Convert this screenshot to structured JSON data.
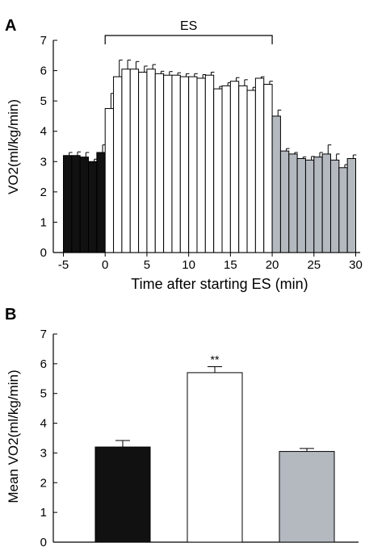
{
  "chart_data": [
    {
      "panel": "A",
      "type": "bar",
      "ylabel": "VO2(ml/kg/min)",
      "xlabel": "Time after starting ES (min)",
      "ylim": [
        0,
        7
      ],
      "xlim": [
        -5,
        30
      ],
      "yticks": [
        "0",
        "1",
        "2",
        "3",
        "4",
        "5",
        "6",
        "7"
      ],
      "xticks": [
        "-5",
        "0",
        "5",
        "10",
        "15",
        "20",
        "25",
        "30"
      ],
      "bracket_label": "ES",
      "bracket_range": [
        0,
        20
      ],
      "colors": {
        "pre": "#111111",
        "es": "#ffffff",
        "post": "#b4b9c0"
      },
      "x": [
        -5,
        -4,
        -3,
        -2,
        -1,
        0,
        1,
        2,
        3,
        4,
        5,
        6,
        7,
        8,
        9,
        10,
        11,
        12,
        13,
        14,
        15,
        16,
        17,
        18,
        19,
        20,
        21,
        22,
        23,
        24,
        25,
        26,
        27,
        28,
        29
      ],
      "values": [
        3.2,
        3.2,
        3.15,
        3.0,
        3.3,
        4.75,
        5.8,
        6.05,
        6.05,
        5.95,
        6.05,
        5.9,
        5.85,
        5.85,
        5.8,
        5.8,
        5.75,
        5.85,
        5.4,
        5.5,
        5.65,
        5.5,
        5.35,
        5.75,
        5.55,
        4.5,
        3.35,
        3.25,
        3.1,
        3.05,
        3.15,
        3.25,
        3.05,
        2.8,
        3.1
      ],
      "errors": [
        0.1,
        0.12,
        0.15,
        0.08,
        0.25,
        0.5,
        0.55,
        0.3,
        0.25,
        0.2,
        0.15,
        0.08,
        0.12,
        0.08,
        0.1,
        0.1,
        0.12,
        0.1,
        0.08,
        0.1,
        0.12,
        0.2,
        0.1,
        0.05,
        0.1,
        0.2,
        0.08,
        0.05,
        0.05,
        0.12,
        0.15,
        0.3,
        0.2,
        0.1,
        0.12
      ],
      "groups": [
        "pre",
        "pre",
        "pre",
        "pre",
        "pre",
        "es",
        "es",
        "es",
        "es",
        "es",
        "es",
        "es",
        "es",
        "es",
        "es",
        "es",
        "es",
        "es",
        "es",
        "es",
        "es",
        "es",
        "es",
        "es",
        "es",
        "post",
        "post",
        "post",
        "post",
        "post",
        "post",
        "post",
        "post",
        "post",
        "post"
      ]
    },
    {
      "panel": "B",
      "type": "bar",
      "ylabel": "Mean VO2(ml/kg/min)",
      "ylim": [
        0,
        7
      ],
      "yticks": [
        "0",
        "1",
        "2",
        "3",
        "4",
        "5",
        "6",
        "7"
      ],
      "values": [
        3.2,
        5.7,
        3.05
      ],
      "errors": [
        0.22,
        0.2,
        0.1
      ],
      "colors": [
        "#111111",
        "#ffffff",
        "#b4b9c0"
      ],
      "significance": [
        "",
        "**",
        ""
      ]
    }
  ]
}
